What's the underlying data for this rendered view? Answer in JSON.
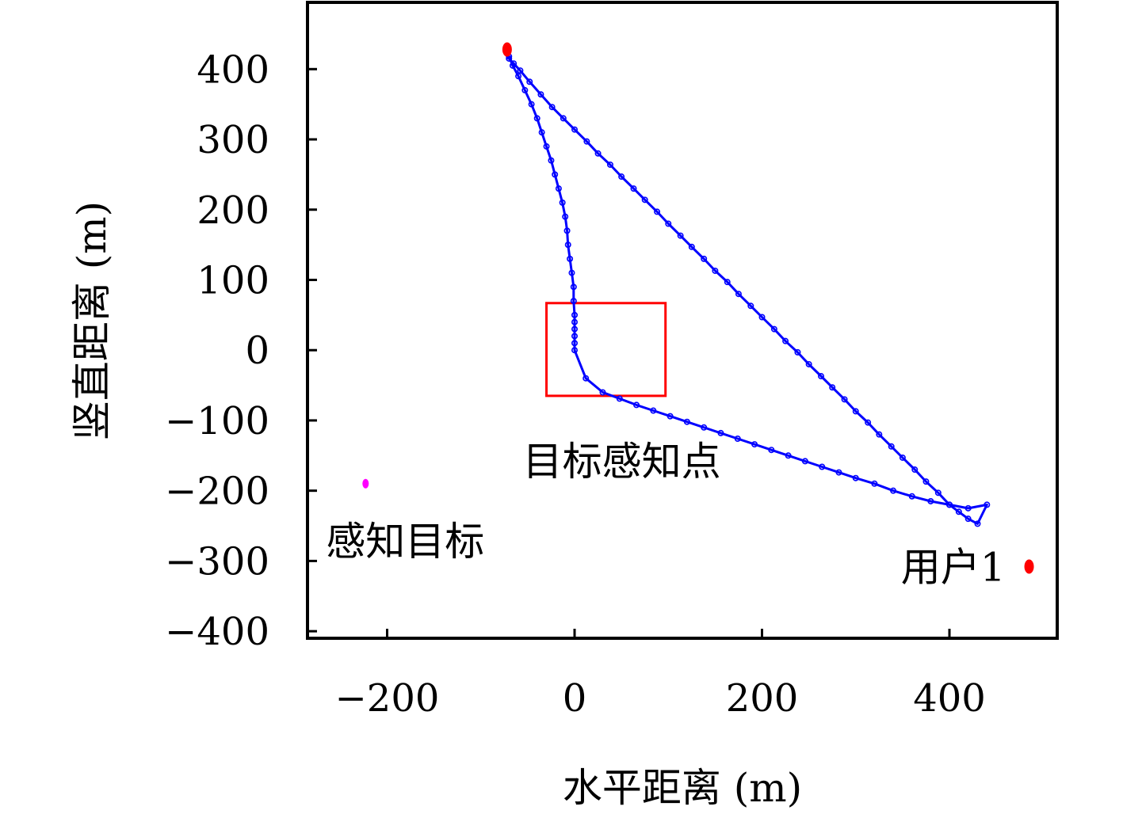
{
  "chart_data": {
    "type": "scatter",
    "xlabel": "水平距离 (m)",
    "ylabel": "竖直距离 (m)",
    "xlim": [
      -285,
      515
    ],
    "ylim": [
      -410,
      495
    ],
    "xticks": [
      -200,
      0,
      200,
      400
    ],
    "yticks": [
      -400,
      -300,
      -200,
      -100,
      0,
      100,
      200,
      300,
      400
    ],
    "xtick_labels": [
      "−200",
      "0",
      "200",
      "400"
    ],
    "ytick_labels": [
      "−400",
      "−300",
      "−200",
      "−100",
      "0",
      "100",
      "200",
      "300",
      "400"
    ],
    "grid": false,
    "colors": {
      "trajectory": "#0000ff",
      "user": "#ff0000",
      "target": "#ff00ff",
      "region": "#ff0000"
    },
    "series": [
      {
        "type": "line-with-markers",
        "points": [
          [
            -72,
            425
          ],
          [
            -70,
            415
          ],
          [
            -65,
            408
          ],
          [
            -58,
            398
          ],
          [
            -48,
            382
          ],
          [
            -36,
            364
          ],
          [
            -24,
            346
          ],
          [
            -12,
            330
          ],
          [
            0,
            314
          ],
          [
            13,
            297
          ],
          [
            25,
            280
          ],
          [
            38,
            264
          ],
          [
            50,
            247
          ],
          [
            63,
            230
          ],
          [
            75,
            214
          ],
          [
            88,
            197
          ],
          [
            100,
            180
          ],
          [
            113,
            163
          ],
          [
            125,
            147
          ],
          [
            138,
            130
          ],
          [
            150,
            113
          ],
          [
            163,
            97
          ],
          [
            175,
            80
          ],
          [
            188,
            63
          ],
          [
            200,
            47
          ],
          [
            213,
            30
          ],
          [
            225,
            13
          ],
          [
            238,
            -3
          ],
          [
            250,
            -20
          ],
          [
            263,
            -37
          ],
          [
            275,
            -53
          ],
          [
            288,
            -70
          ],
          [
            300,
            -87
          ],
          [
            313,
            -103
          ],
          [
            325,
            -120
          ],
          [
            338,
            -137
          ],
          [
            350,
            -153
          ],
          [
            363,
            -170
          ],
          [
            375,
            -187
          ],
          [
            388,
            -203
          ],
          [
            400,
            -220
          ],
          [
            410,
            -230
          ],
          [
            420,
            -240
          ],
          [
            430,
            -247
          ],
          [
            440,
            -220
          ],
          [
            420,
            -225
          ],
          [
            400,
            -220
          ],
          [
            380,
            -215
          ],
          [
            360,
            -208
          ],
          [
            340,
            -200
          ],
          [
            320,
            -190
          ],
          [
            300,
            -182
          ],
          [
            282,
            -174
          ],
          [
            264,
            -166
          ],
          [
            246,
            -158
          ],
          [
            228,
            -150
          ],
          [
            210,
            -142
          ],
          [
            192,
            -134
          ],
          [
            174,
            -126
          ],
          [
            156,
            -118
          ],
          [
            138,
            -110
          ],
          [
            120,
            -102
          ],
          [
            102,
            -94
          ],
          [
            84,
            -86
          ],
          [
            66,
            -78
          ],
          [
            48,
            -69
          ],
          [
            30,
            -60
          ],
          [
            12,
            -40
          ],
          [
            0,
            0
          ],
          [
            0,
            10
          ],
          [
            0,
            20
          ],
          [
            0,
            30
          ],
          [
            0,
            40
          ],
          [
            0,
            50
          ],
          [
            -1,
            70
          ],
          [
            -1,
            90
          ],
          [
            -3,
            110
          ],
          [
            -5,
            130
          ],
          [
            -7,
            150
          ],
          [
            -8,
            170
          ],
          [
            -10,
            190
          ],
          [
            -13,
            210
          ],
          [
            -17,
            230
          ],
          [
            -21,
            250
          ],
          [
            -25,
            270
          ],
          [
            -30,
            290
          ],
          [
            -35,
            310
          ],
          [
            -40,
            330
          ],
          [
            -46,
            350
          ],
          [
            -53,
            370
          ],
          [
            -60,
            390
          ],
          [
            -66,
            405
          ],
          [
            -70,
            418
          ]
        ]
      }
    ],
    "markers": [
      {
        "label": "",
        "x": -72,
        "y": 428,
        "color": "#ff0000"
      },
      {
        "label": "用户1",
        "x": 485,
        "y": -308,
        "color": "#ff0000"
      },
      {
        "label": "感知目标",
        "x": -223,
        "y": -190,
        "color": "#ff00ff"
      }
    ],
    "region": {
      "label": "目标感知点",
      "x0": -30,
      "x1": 97,
      "y0": -65,
      "y1": 67
    }
  }
}
